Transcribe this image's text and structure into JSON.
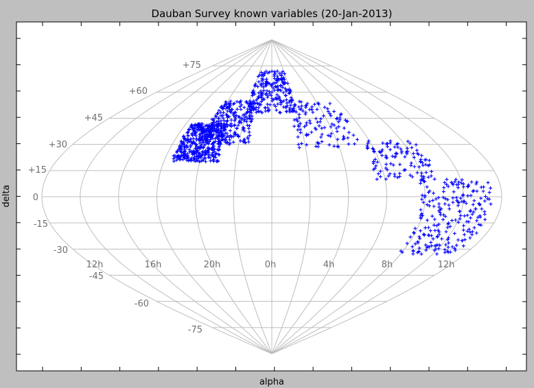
{
  "chart_data": {
    "type": "scatter",
    "projection": "sinusoidal",
    "title": "Dauban Survey known variables (20-Jan-2013)",
    "xlabel": "alpha",
    "ylabel": "delta",
    "marker": "+",
    "color": "#0000ff",
    "grid": true,
    "ra_tick_labels": [
      "12h",
      "16h",
      "20h",
      "0h",
      "4h",
      "8h",
      "12h"
    ],
    "dec_tick_labels": [
      "+75",
      "+60",
      "+45",
      "+30",
      "+15",
      "0",
      "-15",
      "-30",
      "-45",
      "-60",
      "-75"
    ],
    "clusters": [
      {
        "ra_min_h": 18.4,
        "ra_max_h": 21.0,
        "dec_min": 20,
        "dec_max": 42,
        "count": 420
      },
      {
        "ra_min_h": 19.6,
        "ra_max_h": 22.6,
        "dec_min": 30,
        "dec_max": 55,
        "count": 230
      },
      {
        "ra_min_h": 22.0,
        "ra_max_h": 26.0,
        "dec_min": 48,
        "dec_max": 72,
        "count": 220
      },
      {
        "ra_min_h": 1.5,
        "ra_max_h": 5.5,
        "dec_min": 28,
        "dec_max": 55,
        "count": 110
      },
      {
        "ra_min_h": 5.5,
        "ra_max_h": 8.8,
        "dec_min": 10,
        "dec_max": 32,
        "count": 110
      },
      {
        "ra_min_h": 7.8,
        "ra_max_h": 11.5,
        "dec_min": -33,
        "dec_max": 10,
        "count": 230
      }
    ]
  }
}
